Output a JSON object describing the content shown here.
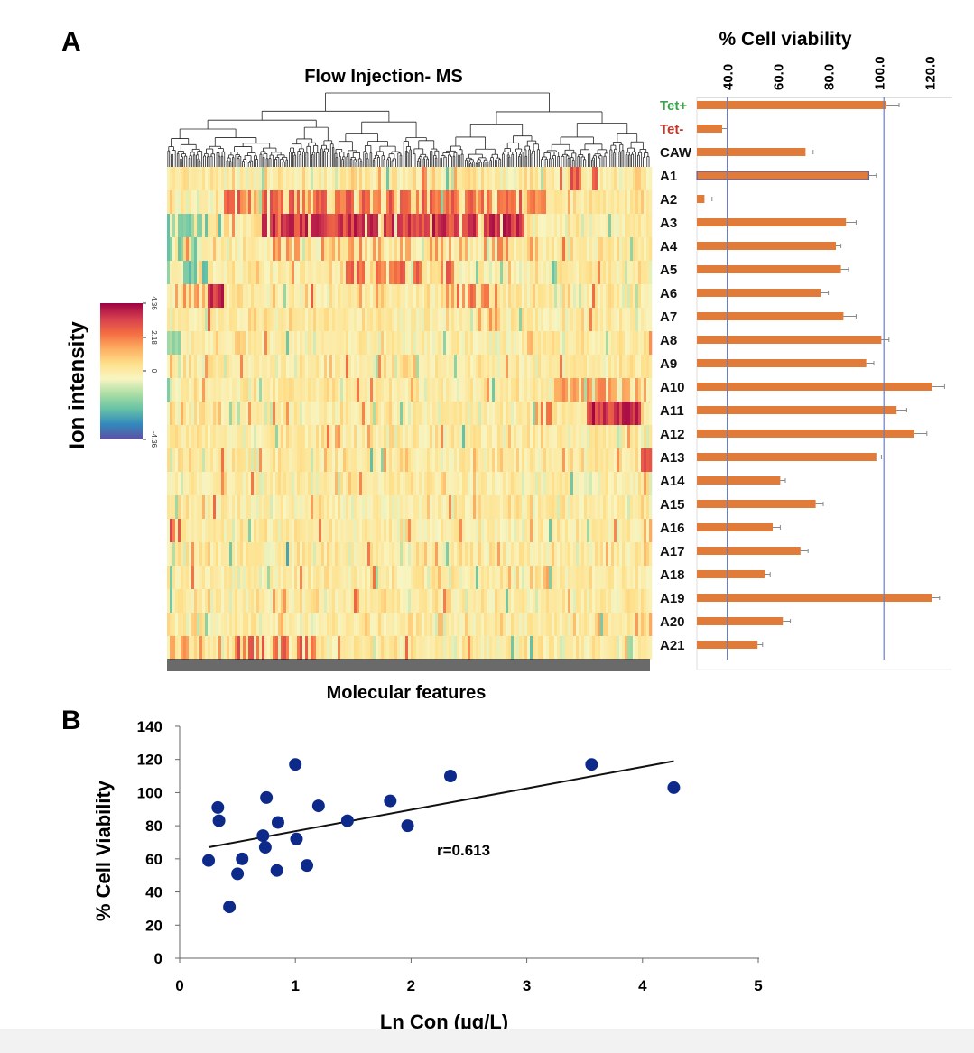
{
  "panel_labels": {
    "a": "A",
    "b": "B"
  },
  "chart_data": [
    {
      "type": "heatmap",
      "title": "Flow Injection- MS",
      "xlabel": "Molecular features",
      "rows": [
        "A1",
        "A2",
        "A3",
        "A4",
        "A5",
        "A6",
        "A7",
        "A8",
        "A9",
        "A10",
        "A11",
        "A12",
        "A13",
        "A14",
        "A15",
        "A16",
        "A17",
        "A18",
        "A19",
        "A20",
        "A21"
      ],
      "dendrogram": "top",
      "colorbar": {
        "label": "Ion intensity",
        "min": -4.36,
        "max": 4.36,
        "tick_labels": [
          "4.36",
          "2.18",
          "0",
          "-4.36"
        ],
        "colors": [
          "#9e0142",
          "#d53e4f",
          "#f46d43",
          "#fdae61",
          "#fee08b",
          "#f8f5c2",
          "#abdda4",
          "#66c2a5",
          "#3288bd",
          "#5e4fa2"
        ]
      }
    },
    {
      "type": "bar",
      "orientation": "horizontal",
      "title": "% Cell viability",
      "categories": [
        "Tet+",
        "Tet-",
        "CAW",
        "A1",
        "A2",
        "A3",
        "A4",
        "A5",
        "A6",
        "A7",
        "A8",
        "A9",
        "A10",
        "A11",
        "A12",
        "A13",
        "A14",
        "A15",
        "A16",
        "A17",
        "A18",
        "A19",
        "A20",
        "A21"
      ],
      "category_colors": {
        "Tet+": "#3fa34d",
        "Tet-": "#c0392b"
      },
      "values": [
        103,
        38,
        71,
        96,
        31,
        87,
        83,
        85,
        77,
        86,
        101,
        95,
        121,
        107,
        114,
        99,
        61,
        75,
        58,
        69,
        55,
        121,
        62,
        52
      ],
      "errors": [
        5,
        2,
        3,
        3,
        3,
        4,
        2,
        3,
        3,
        5,
        3,
        3,
        5,
        4,
        5,
        2,
        2,
        3,
        3,
        3,
        2,
        3,
        3,
        2
      ],
      "tick_labels": [
        "40.0",
        "60.0",
        "80.0",
        "100.0",
        "120.0"
      ],
      "xlim": [
        28,
        130
      ],
      "reference_lines": [
        40,
        102
      ],
      "bar_color": "#e07b39",
      "reference_line_color": "#6a7fc0"
    },
    {
      "type": "scatter",
      "xlabel": "Ln Con (µg/L)",
      "ylabel": "% Cell Viability",
      "xlim": [
        0,
        5
      ],
      "ylim": [
        0,
        140
      ],
      "x_ticks": [
        "0",
        "1",
        "2",
        "3",
        "4",
        "5"
      ],
      "y_ticks": [
        "0",
        "20",
        "40",
        "60",
        "80",
        "100",
        "120",
        "140"
      ],
      "points": [
        [
          0.25,
          59
        ],
        [
          0.33,
          91
        ],
        [
          0.34,
          83
        ],
        [
          0.43,
          31
        ],
        [
          0.5,
          51
        ],
        [
          0.54,
          60
        ],
        [
          0.72,
          74
        ],
        [
          0.74,
          67
        ],
        [
          0.75,
          97
        ],
        [
          0.84,
          53
        ],
        [
          0.85,
          82
        ],
        [
          1.0,
          117
        ],
        [
          1.01,
          72
        ],
        [
          1.1,
          56
        ],
        [
          1.2,
          92
        ],
        [
          1.45,
          83
        ],
        [
          1.82,
          95
        ],
        [
          1.97,
          80
        ],
        [
          2.34,
          110
        ],
        [
          3.56,
          117
        ],
        [
          4.27,
          103
        ]
      ],
      "trendline": [
        [
          0.25,
          67
        ],
        [
          4.27,
          119
        ]
      ],
      "annotation": "r=0.613",
      "point_color": "#0d2a8a"
    }
  ]
}
